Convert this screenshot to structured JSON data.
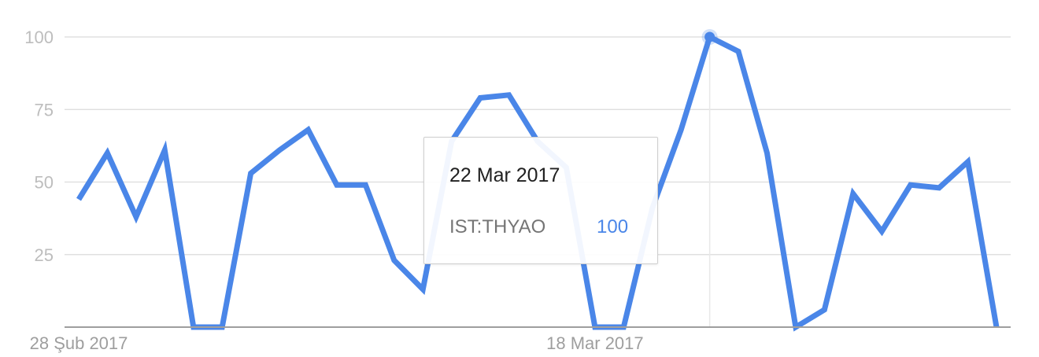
{
  "chart_data": {
    "type": "line",
    "series": [
      {
        "name": "IST:THYAO",
        "color": "#4a86e8",
        "values": [
          44,
          60,
          38,
          61,
          0,
          0,
          53,
          61,
          68,
          49,
          49,
          23,
          13,
          64,
          79,
          80,
          64,
          55,
          0,
          0,
          41,
          68,
          100,
          95,
          60,
          0,
          6,
          46,
          33,
          49,
          48,
          57,
          0
        ]
      }
    ],
    "x_tick_labels": [
      "28 Şub 2017",
      "18 Mar 2017"
    ],
    "x_tick_indices": [
      0,
      18
    ],
    "y_ticks": [
      25,
      50,
      75,
      100
    ],
    "ylim": [
      0,
      100
    ],
    "grid": true,
    "highlight_index": 22
  },
  "tooltip": {
    "date": "22 Mar 2017",
    "series_label": "IST:THYAO",
    "value": "100"
  }
}
